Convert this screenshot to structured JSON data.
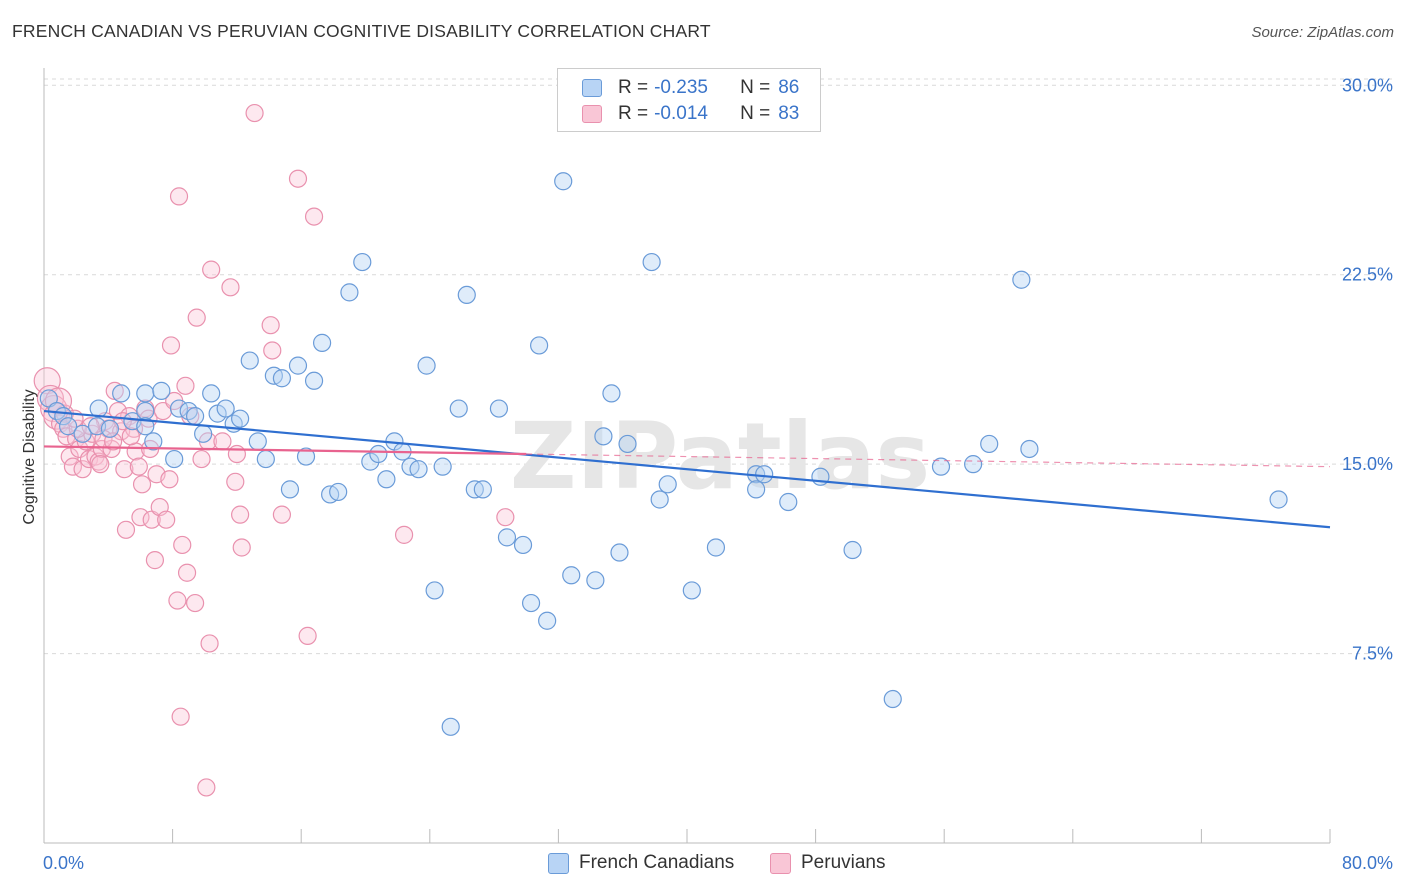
{
  "title": "FRENCH CANADIAN VS PERUVIAN COGNITIVE DISABILITY CORRELATION CHART",
  "source": "Source: ZipAtlas.com",
  "watermark": "ZIPatlas",
  "legend": {
    "r_label": "R =",
    "n_label": "N =",
    "items": [
      {
        "name": "French Canadians",
        "r": "-0.235",
        "n": "86",
        "fill": "#b8d4f5",
        "stroke": "#6a9bd8"
      },
      {
        "name": "Peruvians",
        "r": "-0.014",
        "n": "83",
        "fill": "#f9c6d6",
        "stroke": "#e991ae"
      }
    ]
  },
  "colors": {
    "blue_line": "#2f6fd0",
    "pink_line": "#e8638f",
    "tick_text": "#3a74c9",
    "grid": "#d9d9d9"
  },
  "chart_data": {
    "type": "scatter",
    "xlabel": "",
    "ylabel": "Cognitive Disability",
    "xlim": [
      0,
      80
    ],
    "ylim": [
      0,
      31
    ],
    "x_tick_labels": [
      "0.0%",
      "80.0%"
    ],
    "y_ticks": [
      7.5,
      15.0,
      22.5,
      30.0
    ],
    "y_tick_labels": [
      "7.5%",
      "15.0%",
      "22.5%",
      "30.0%"
    ],
    "grid": "horizontal dashed",
    "legend_position": "top-center",
    "series": [
      {
        "name": "French Canadians",
        "trend": {
          "x": [
            0,
            80
          ],
          "y": [
            17.1,
            12.5
          ]
        },
        "points": [
          [
            0.3,
            17.6
          ],
          [
            0.8,
            17.1
          ],
          [
            1.2,
            16.9
          ],
          [
            1.5,
            16.5
          ],
          [
            2.4,
            16.2
          ],
          [
            3.3,
            16.5
          ],
          [
            3.4,
            17.2
          ],
          [
            4.1,
            16.4
          ],
          [
            4.8,
            17.8
          ],
          [
            5.5,
            16.7
          ],
          [
            6.3,
            17.1
          ],
          [
            6.3,
            16.5
          ],
          [
            6.3,
            17.8
          ],
          [
            6.8,
            15.9
          ],
          [
            7.3,
            17.9
          ],
          [
            8.1,
            15.2
          ],
          [
            8.4,
            17.2
          ],
          [
            9.0,
            17.1
          ],
          [
            9.4,
            16.9
          ],
          [
            9.9,
            16.2
          ],
          [
            10.4,
            17.8
          ],
          [
            10.8,
            17.0
          ],
          [
            11.3,
            17.2
          ],
          [
            11.8,
            16.6
          ],
          [
            12.2,
            16.8
          ],
          [
            12.8,
            19.1
          ],
          [
            13.3,
            15.9
          ],
          [
            13.8,
            15.2
          ],
          [
            14.3,
            18.5
          ],
          [
            14.8,
            18.4
          ],
          [
            15.3,
            14.0
          ],
          [
            15.8,
            18.9
          ],
          [
            16.3,
            15.3
          ],
          [
            16.8,
            18.3
          ],
          [
            17.3,
            19.8
          ],
          [
            17.8,
            13.8
          ],
          [
            18.3,
            13.9
          ],
          [
            19.0,
            21.8
          ],
          [
            19.8,
            23.0
          ],
          [
            20.3,
            15.1
          ],
          [
            20.8,
            15.4
          ],
          [
            21.3,
            14.4
          ],
          [
            21.8,
            15.9
          ],
          [
            22.3,
            15.5
          ],
          [
            22.8,
            14.9
          ],
          [
            23.3,
            14.8
          ],
          [
            23.8,
            18.9
          ],
          [
            24.3,
            10.0
          ],
          [
            24.8,
            14.9
          ],
          [
            25.3,
            4.6
          ],
          [
            25.8,
            17.2
          ],
          [
            26.3,
            21.7
          ],
          [
            26.8,
            14.0
          ],
          [
            27.3,
            14.0
          ],
          [
            28.3,
            17.2
          ],
          [
            28.8,
            12.1
          ],
          [
            29.8,
            11.8
          ],
          [
            30.3,
            9.5
          ],
          [
            30.8,
            19.7
          ],
          [
            31.3,
            8.8
          ],
          [
            32.3,
            26.2
          ],
          [
            32.8,
            10.6
          ],
          [
            34.3,
            10.4
          ],
          [
            34.8,
            16.1
          ],
          [
            35.3,
            17.8
          ],
          [
            35.8,
            11.5
          ],
          [
            36.3,
            15.8
          ],
          [
            37.3,
            29.6
          ],
          [
            37.8,
            23.0
          ],
          [
            38.3,
            13.6
          ],
          [
            38.8,
            14.2
          ],
          [
            40.3,
            10.0
          ],
          [
            41.8,
            11.7
          ],
          [
            44.3,
            14.6
          ],
          [
            44.8,
            14.6
          ],
          [
            46.3,
            13.5
          ],
          [
            48.3,
            14.5
          ],
          [
            50.3,
            11.6
          ],
          [
            52.8,
            5.7
          ],
          [
            55.8,
            14.9
          ],
          [
            57.8,
            15.0
          ],
          [
            58.8,
            15.8
          ],
          [
            60.8,
            22.3
          ],
          [
            61.3,
            15.6
          ],
          [
            76.8,
            13.6
          ],
          [
            44.3,
            14.0
          ]
        ]
      },
      {
        "name": "Peruvians",
        "trend": {
          "x": [
            0,
            30
          ],
          "y": [
            15.7,
            15.4
          ]
        },
        "points": [
          [
            0.2,
            18.3
          ],
          [
            0.4,
            17.6
          ],
          [
            0.6,
            17.2
          ],
          [
            0.8,
            16.9
          ],
          [
            1.0,
            16.6
          ],
          [
            1.2,
            16.4
          ],
          [
            1.4,
            16.1
          ],
          [
            1.6,
            15.3
          ],
          [
            1.8,
            14.9
          ],
          [
            2.0,
            16.0
          ],
          [
            2.2,
            15.6
          ],
          [
            2.4,
            14.8
          ],
          [
            2.6,
            15.9
          ],
          [
            2.8,
            15.2
          ],
          [
            3.0,
            16.2
          ],
          [
            3.2,
            15.3
          ],
          [
            3.4,
            15.1
          ],
          [
            3.6,
            15.6
          ],
          [
            3.8,
            16.7
          ],
          [
            4.0,
            16.4
          ],
          [
            4.2,
            15.6
          ],
          [
            4.4,
            17.9
          ],
          [
            4.6,
            17.1
          ],
          [
            4.8,
            16.3
          ],
          [
            5.0,
            14.8
          ],
          [
            5.1,
            12.4
          ],
          [
            5.3,
            16.9
          ],
          [
            5.6,
            16.4
          ],
          [
            5.7,
            15.5
          ],
          [
            5.9,
            14.9
          ],
          [
            6.0,
            12.9
          ],
          [
            6.1,
            14.2
          ],
          [
            6.3,
            17.2
          ],
          [
            6.5,
            16.8
          ],
          [
            6.7,
            12.8
          ],
          [
            6.9,
            11.2
          ],
          [
            7.0,
            14.6
          ],
          [
            7.2,
            13.3
          ],
          [
            7.4,
            17.1
          ],
          [
            7.6,
            12.8
          ],
          [
            7.8,
            14.4
          ],
          [
            7.9,
            19.7
          ],
          [
            8.1,
            17.5
          ],
          [
            8.3,
            9.6
          ],
          [
            8.4,
            25.6
          ],
          [
            8.5,
            5.0
          ],
          [
            8.6,
            11.8
          ],
          [
            8.8,
            18.1
          ],
          [
            8.9,
            10.7
          ],
          [
            9.1,
            16.9
          ],
          [
            9.4,
            9.5
          ],
          [
            9.5,
            20.8
          ],
          [
            9.8,
            15.2
          ],
          [
            10.1,
            2.2
          ],
          [
            10.2,
            15.9
          ],
          [
            10.3,
            7.9
          ],
          [
            10.4,
            22.7
          ],
          [
            11.1,
            15.9
          ],
          [
            11.6,
            22.0
          ],
          [
            11.9,
            14.3
          ],
          [
            12.0,
            15.4
          ],
          [
            12.2,
            13.0
          ],
          [
            12.3,
            11.7
          ],
          [
            13.1,
            28.9
          ],
          [
            14.1,
            20.5
          ],
          [
            14.2,
            19.5
          ],
          [
            14.8,
            13.0
          ],
          [
            15.8,
            26.3
          ],
          [
            16.4,
            8.2
          ],
          [
            16.8,
            24.8
          ],
          [
            22.4,
            12.2
          ],
          [
            28.7,
            12.9
          ],
          [
            2.1,
            16.4
          ],
          [
            3.7,
            16.0
          ],
          [
            4.9,
            16.7
          ],
          [
            6.6,
            15.6
          ],
          [
            1.3,
            17.0
          ],
          [
            2.9,
            16.5
          ],
          [
            0.9,
            17.5
          ],
          [
            3.5,
            15.0
          ],
          [
            5.4,
            16.1
          ],
          [
            4.3,
            15.9
          ],
          [
            1.9,
            16.8
          ]
        ]
      }
    ]
  }
}
